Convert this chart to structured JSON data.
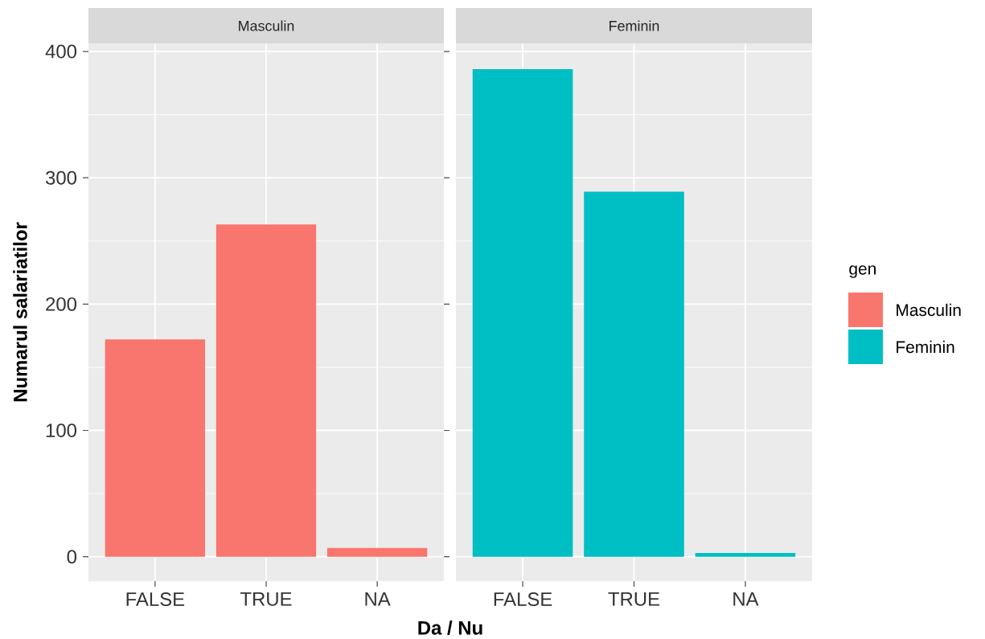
{
  "chart_data": [
    {
      "type": "bar",
      "title": "Masculin",
      "xlabel": "Da / Nu",
      "ylabel": "Numarul salariatilor",
      "legend_title": "gen",
      "legend": "right",
      "grid": true,
      "categories": [
        "FALSE",
        "TRUE",
        "NA"
      ],
      "series": [
        {
          "name": "Masculin",
          "color": "#f8766d",
          "values": [
            172,
            263,
            7
          ]
        }
      ],
      "ylim": [
        -19.3,
        406.4
      ],
      "yticks": [
        0,
        100,
        200,
        300,
        400
      ]
    },
    {
      "type": "bar",
      "title": "Feminin",
      "legend": "right",
      "grid": true,
      "tick_labels": "x",
      "categories": [
        "FALSE",
        "TRUE",
        "NA"
      ],
      "series": [
        {
          "name": "Feminin",
          "color": "#00bfc4",
          "values": [
            386,
            289,
            3
          ]
        }
      ],
      "ylim": [
        -19.3,
        406.4
      ],
      "yticks": [
        0,
        100,
        200,
        300,
        400
      ]
    }
  ]
}
